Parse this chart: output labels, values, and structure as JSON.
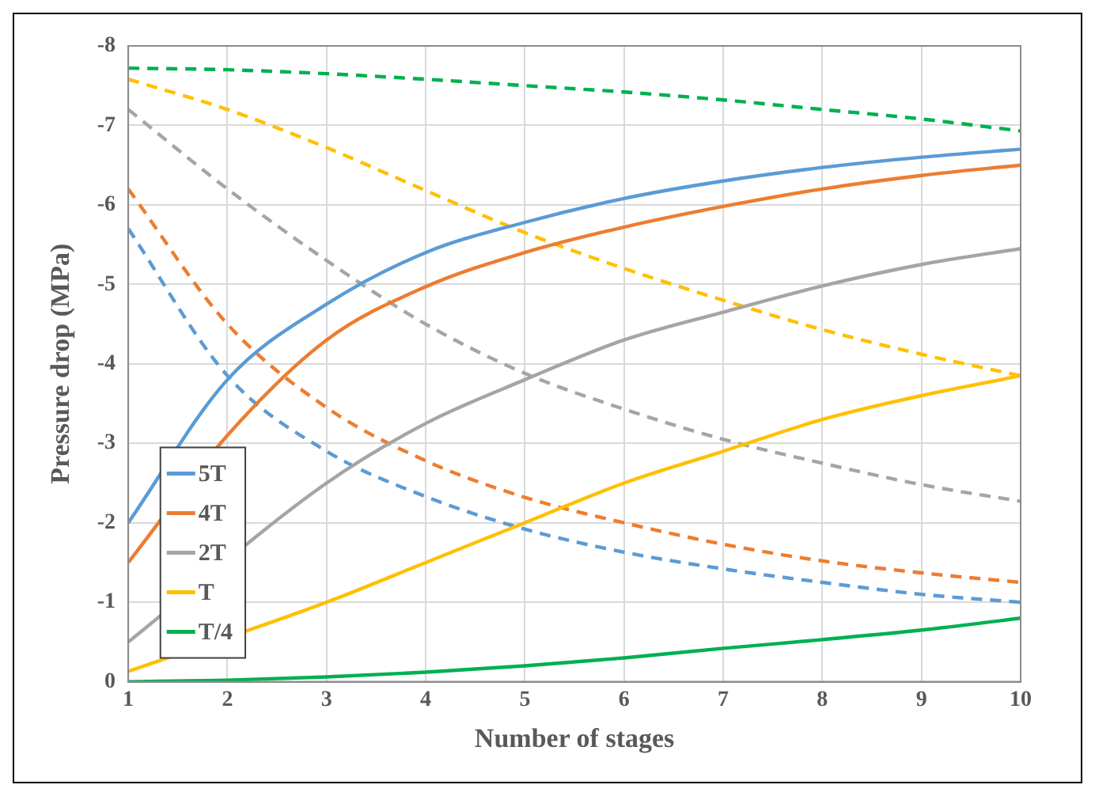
{
  "chart_data": {
    "type": "line",
    "xlabel": "Number of stages",
    "ylabel": "Pressure drop (MPa)",
    "x": [
      1,
      2,
      3,
      4,
      5,
      6,
      7,
      8,
      9,
      10
    ],
    "xlim": [
      1,
      10
    ],
    "xticks": [
      1,
      2,
      3,
      4,
      5,
      6,
      7,
      8,
      9,
      10
    ],
    "ylim": [
      0,
      -8
    ],
    "yticks": [
      0,
      -1,
      -2,
      -3,
      -4,
      -5,
      -6,
      -7,
      -8
    ],
    "grid": true,
    "legend": "bottom left",
    "marker": "none",
    "series": [
      {
        "name": "5T",
        "color": "#5b9bd5",
        "line_style": "solid",
        "values": [
          -2.0,
          -3.8,
          -4.75,
          -5.4,
          -5.78,
          -6.08,
          -6.3,
          -6.47,
          -6.6,
          -6.7
        ]
      },
      {
        "name": "4T",
        "color": "#ed7d31",
        "line_style": "solid",
        "values": [
          -1.5,
          -3.1,
          -4.3,
          -4.97,
          -5.4,
          -5.72,
          -5.98,
          -6.2,
          -6.37,
          -6.5
        ]
      },
      {
        "name": "2T",
        "color": "#a5a5a5",
        "line_style": "solid",
        "values": [
          -0.5,
          null,
          -2.5,
          -3.25,
          -3.8,
          -4.3,
          -4.65,
          -4.98,
          -5.25,
          -5.45
        ]
      },
      {
        "name": "T",
        "color": "#ffc000",
        "line_style": "solid",
        "values": [
          -0.13,
          null,
          -1.0,
          -1.5,
          -2.0,
          -2.5,
          -2.9,
          -3.3,
          -3.6,
          -3.85
        ]
      },
      {
        "name": "T/4",
        "color": "#00b050",
        "line_style": "solid",
        "values": [
          0,
          -0.02,
          -0.06,
          -0.12,
          -0.2,
          -0.3,
          -0.42,
          -0.53,
          -0.65,
          -0.8
        ]
      },
      {
        "color": "#5b9bd5",
        "line_style": "dashed",
        "values": [
          -5.7,
          -3.85,
          -2.9,
          -2.33,
          -1.92,
          -1.63,
          -1.42,
          -1.25,
          -1.1,
          -1.0
        ]
      },
      {
        "color": "#ed7d31",
        "line_style": "dashed",
        "values": [
          -6.2,
          -4.5,
          -3.45,
          -2.78,
          -2.32,
          -2.0,
          -1.73,
          -1.52,
          -1.37,
          -1.25
        ]
      },
      {
        "color": "#a5a5a5",
        "line_style": "dashed",
        "values": [
          -7.2,
          -6.2,
          -5.3,
          -4.5,
          -3.88,
          -3.43,
          -3.05,
          -2.75,
          -2.48,
          -2.27
        ]
      },
      {
        "color": "#ffc000",
        "line_style": "dashed",
        "values": [
          -7.58,
          -7.2,
          -6.72,
          -6.18,
          -5.65,
          -5.2,
          -4.8,
          -4.43,
          -4.12,
          -3.85
        ]
      },
      {
        "color": "#00b050",
        "line_style": "dashed",
        "values": [
          -7.72,
          -7.7,
          -7.65,
          -7.58,
          -7.5,
          -7.42,
          -7.32,
          -7.2,
          -7.08,
          -6.93
        ]
      }
    ]
  }
}
